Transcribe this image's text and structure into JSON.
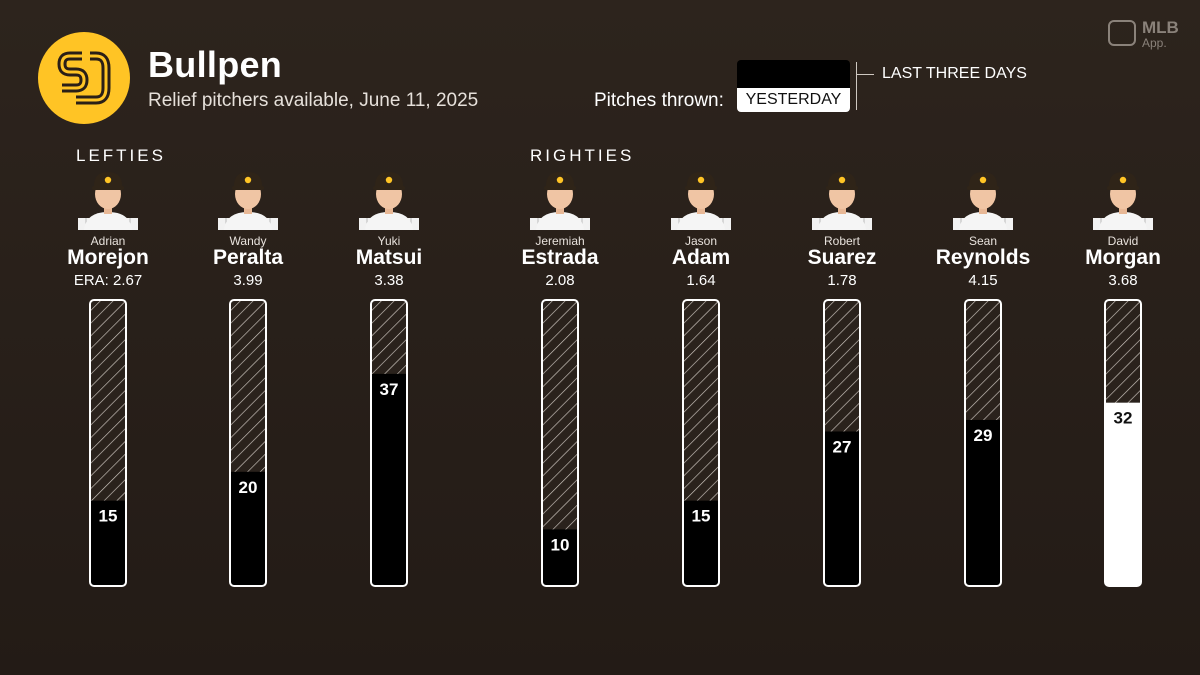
{
  "header": {
    "title": "Bullpen",
    "subtitle": "Relief pitchers available, June 11, 2025",
    "legend": {
      "label": "Pitches thrown:",
      "yesterday": "YESTERDAY",
      "last_three_days": "LAST THREE DAYS"
    },
    "brand": {
      "name": "MLB",
      "sub": "App."
    }
  },
  "groups": {
    "lefties": "LEFTIES",
    "righties": "RIGHTIES"
  },
  "colors": {
    "background": "#2b231d",
    "logo": "#ffc425",
    "last_three_days": "#000000",
    "yesterday": "#ffffff",
    "hatch": "#cfc8c1"
  },
  "chart_data": {
    "type": "bar",
    "categories": [
      "Morejon",
      "Peralta",
      "Matsui",
      "Estrada",
      "Adam",
      "Suarez",
      "Reynolds",
      "Morgan"
    ],
    "series": [
      {
        "name": "LAST THREE DAYS",
        "values": [
          15,
          20,
          37,
          10,
          15,
          27,
          29,
          0
        ]
      },
      {
        "name": "YESTERDAY",
        "values": [
          0,
          0,
          0,
          0,
          0,
          0,
          0,
          32
        ]
      }
    ],
    "ylim": [
      0,
      50
    ],
    "pitchers": [
      {
        "first": "Adrian",
        "last": "Morejon",
        "era": "ERA: 2.67",
        "group": "lefties",
        "pitches": 15,
        "label": "15",
        "yesterday": false
      },
      {
        "first": "Wandy",
        "last": "Peralta",
        "era": "3.99",
        "group": "lefties",
        "pitches": 20,
        "label": "20",
        "yesterday": false
      },
      {
        "first": "Yuki",
        "last": "Matsui",
        "era": "3.38",
        "group": "lefties",
        "pitches": 37,
        "label": "37",
        "yesterday": false
      },
      {
        "first": "Jeremiah",
        "last": "Estrada",
        "era": "2.08",
        "group": "righties",
        "pitches": 10,
        "label": "10",
        "yesterday": false
      },
      {
        "first": "Jason",
        "last": "Adam",
        "era": "1.64",
        "group": "righties",
        "pitches": 15,
        "label": "15",
        "yesterday": false
      },
      {
        "first": "Robert",
        "last": "Suarez",
        "era": "1.78",
        "group": "righties",
        "pitches": 27,
        "label": "27",
        "yesterday": false
      },
      {
        "first": "Sean",
        "last": "Reynolds",
        "era": "4.15",
        "group": "righties",
        "pitches": 29,
        "label": "29",
        "yesterday": false
      },
      {
        "first": "David",
        "last": "Morgan",
        "era": "3.68",
        "group": "righties",
        "pitches": 32,
        "label": "32",
        "yesterday": true
      }
    ]
  }
}
